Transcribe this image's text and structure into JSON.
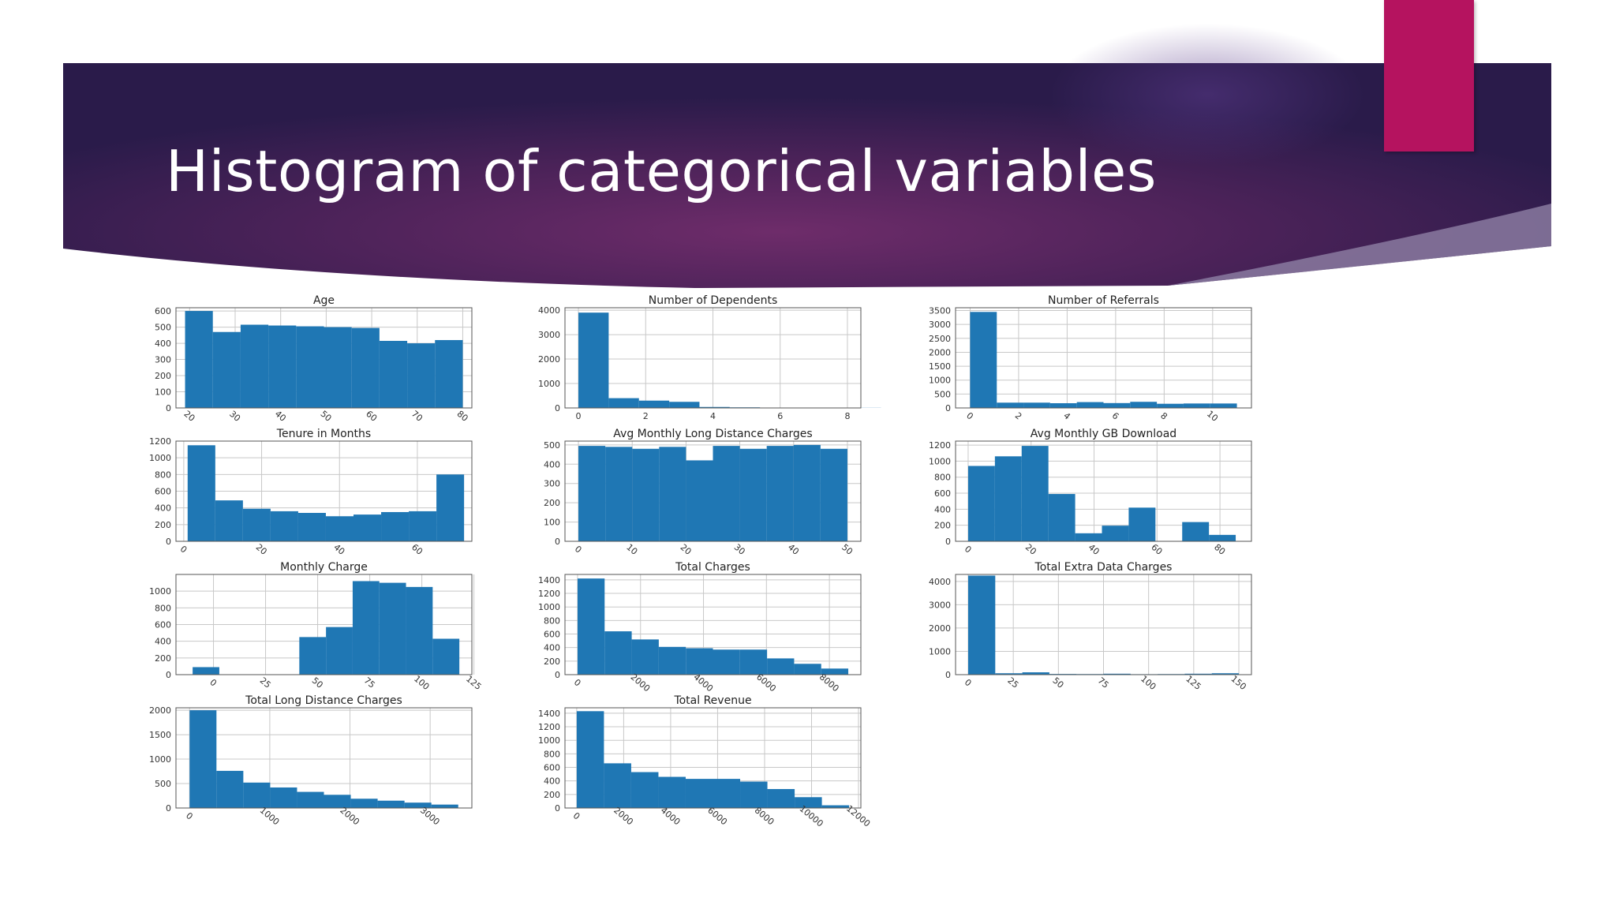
{
  "slide": {
    "title": "Histogram of categorical variables",
    "colors": {
      "banner_dark": "#2a1b4a",
      "banner_mid": "#6a2d68",
      "accent": "#b5135f",
      "bar": "#1f77b4"
    },
    "icons": []
  },
  "chart_data": [
    {
      "type": "bar",
      "title": "Age",
      "xlim": [
        17,
        82
      ],
      "ylim": [
        0,
        620
      ],
      "xticks": [
        20,
        30,
        40,
        50,
        60,
        70,
        80
      ],
      "yticks": [
        0,
        100,
        200,
        300,
        400,
        500,
        600
      ],
      "rotate_x": true,
      "bins": [
        [
          19,
          25.1,
          600
        ],
        [
          25.1,
          31.2,
          470
        ],
        [
          31.2,
          37.3,
          515
        ],
        [
          37.3,
          43.4,
          510
        ],
        [
          43.4,
          49.5,
          505
        ],
        [
          49.5,
          55.6,
          500
        ],
        [
          55.6,
          61.7,
          495
        ],
        [
          61.7,
          67.8,
          415
        ],
        [
          67.8,
          73.9,
          400
        ],
        [
          73.9,
          80,
          420
        ]
      ]
    },
    {
      "type": "bar",
      "title": "Number of Dependents",
      "xlim": [
        -0.4,
        8.4
      ],
      "ylim": [
        0,
        4100
      ],
      "xticks": [
        0,
        2,
        4,
        6,
        8
      ],
      "yticks": [
        0,
        1000,
        2000,
        3000,
        4000
      ],
      "rotate_x": false,
      "bins": [
        [
          0,
          0.9,
          3900
        ],
        [
          0.9,
          1.8,
          400
        ],
        [
          1.8,
          2.7,
          300
        ],
        [
          2.7,
          3.6,
          250
        ],
        [
          3.6,
          4.5,
          40
        ],
        [
          4.5,
          5.4,
          25
        ],
        [
          5.4,
          6.3,
          15
        ],
        [
          6.3,
          7.2,
          10
        ],
        [
          7.2,
          8.1,
          5
        ],
        [
          8.1,
          9,
          5
        ]
      ]
    },
    {
      "type": "bar",
      "title": "Number of Referrals",
      "xlim": [
        -0.6,
        11.6
      ],
      "ylim": [
        0,
        3600
      ],
      "xticks": [
        0,
        2,
        4,
        6,
        8,
        10
      ],
      "yticks": [
        0,
        500,
        1000,
        1500,
        2000,
        2500,
        3000,
        3500
      ],
      "rotate_x": true,
      "bins": [
        [
          0,
          1.1,
          3450
        ],
        [
          1.1,
          2.2,
          190
        ],
        [
          2.2,
          3.3,
          190
        ],
        [
          3.3,
          4.4,
          170
        ],
        [
          4.4,
          5.5,
          210
        ],
        [
          5.5,
          6.6,
          175
        ],
        [
          6.6,
          7.7,
          220
        ],
        [
          7.7,
          8.8,
          150
        ],
        [
          8.8,
          9.9,
          160
        ],
        [
          9.9,
          11,
          160
        ]
      ]
    },
    {
      "type": "bar",
      "title": "Tenure in Months",
      "xlim": [
        -2,
        74
      ],
      "ylim": [
        0,
        1200
      ],
      "xticks": [
        0,
        20,
        40,
        60
      ],
      "yticks": [
        0,
        200,
        400,
        600,
        800,
        1000,
        1200
      ],
      "rotate_x": true,
      "bins": [
        [
          1,
          8.1,
          1150
        ],
        [
          8.1,
          15.2,
          490
        ],
        [
          15.2,
          22.3,
          390
        ],
        [
          22.3,
          29.4,
          360
        ],
        [
          29.4,
          36.5,
          340
        ],
        [
          36.5,
          43.6,
          300
        ],
        [
          43.6,
          50.7,
          320
        ],
        [
          50.7,
          57.8,
          350
        ],
        [
          57.8,
          64.9,
          360
        ],
        [
          64.9,
          72,
          800
        ]
      ]
    },
    {
      "type": "bar",
      "title": "Avg Monthly Long Distance Charges",
      "xlim": [
        -2.5,
        52.5
      ],
      "ylim": [
        0,
        520
      ],
      "xticks": [
        0,
        10,
        20,
        30,
        40,
        50
      ],
      "yticks": [
        0,
        100,
        200,
        300,
        400,
        500
      ],
      "rotate_x": true,
      "bins": [
        [
          0,
          5,
          495
        ],
        [
          5,
          10,
          490
        ],
        [
          10,
          15,
          480
        ],
        [
          15,
          20,
          490
        ],
        [
          20,
          25,
          420
        ],
        [
          25,
          30,
          495
        ],
        [
          30,
          35,
          480
        ],
        [
          35,
          40,
          495
        ],
        [
          40,
          45,
          500
        ],
        [
          45,
          50,
          480
        ]
      ]
    },
    {
      "type": "bar",
      "title": "Avg Monthly GB Download",
      "xlim": [
        -4,
        90
      ],
      "ylim": [
        0,
        1250
      ],
      "xticks": [
        0,
        20,
        40,
        60,
        80
      ],
      "yticks": [
        0,
        200,
        400,
        600,
        800,
        1000,
        1200
      ],
      "rotate_x": true,
      "bins": [
        [
          0,
          8.5,
          940
        ],
        [
          8.5,
          17,
          1060
        ],
        [
          17,
          25.5,
          1190
        ],
        [
          25.5,
          34,
          590
        ],
        [
          34,
          42.5,
          100
        ],
        [
          42.5,
          51,
          195
        ],
        [
          51,
          59.5,
          420
        ],
        [
          59.5,
          68,
          0
        ],
        [
          68,
          76.5,
          240
        ],
        [
          76.5,
          85,
          80
        ]
      ]
    },
    {
      "type": "bar",
      "title": "Monthly Charge",
      "xlim": [
        -18,
        124
      ],
      "ylim": [
        0,
        1200
      ],
      "xticks": [
        0,
        25,
        50,
        75,
        100,
        125
      ],
      "yticks": [
        0,
        200,
        400,
        600,
        800,
        1000
      ],
      "rotate_x": true,
      "bins": [
        [
          -10,
          2.8,
          90
        ],
        [
          2.8,
          15.6,
          0
        ],
        [
          15.6,
          28.4,
          0
        ],
        [
          28.4,
          41.2,
          0
        ],
        [
          41.2,
          54,
          450
        ],
        [
          54,
          66.8,
          570
        ],
        [
          66.8,
          79.6,
          1120
        ],
        [
          79.6,
          92.4,
          1100
        ],
        [
          92.4,
          105.2,
          1050
        ],
        [
          105.2,
          118,
          430
        ]
      ]
    },
    {
      "type": "bar",
      "title": "Total Charges",
      "xlim": [
        -400,
        9000
      ],
      "ylim": [
        0,
        1480
      ],
      "xticks": [
        0,
        2000,
        4000,
        6000,
        8000
      ],
      "yticks": [
        0,
        200,
        400,
        600,
        800,
        1000,
        1200,
        1400
      ],
      "rotate_x": true,
      "bins": [
        [
          0,
          860,
          1420
        ],
        [
          860,
          1720,
          640
        ],
        [
          1720,
          2580,
          520
        ],
        [
          2580,
          3440,
          410
        ],
        [
          3440,
          4300,
          390
        ],
        [
          4300,
          5160,
          370
        ],
        [
          5160,
          6020,
          370
        ],
        [
          6020,
          6880,
          240
        ],
        [
          6880,
          7740,
          160
        ],
        [
          7740,
          8600,
          90
        ]
      ]
    },
    {
      "type": "bar",
      "title": "Total Extra Data Charges",
      "xlim": [
        -7,
        157
      ],
      "ylim": [
        0,
        4300
      ],
      "xticks": [
        0,
        25,
        50,
        75,
        100,
        125,
        150
      ],
      "yticks": [
        0,
        1000,
        2000,
        3000,
        4000
      ],
      "rotate_x": true,
      "bins": [
        [
          0,
          15,
          4250
        ],
        [
          15,
          30,
          60
        ],
        [
          30,
          45,
          100
        ],
        [
          45,
          60,
          30
        ],
        [
          60,
          75,
          25
        ],
        [
          75,
          90,
          40
        ],
        [
          90,
          105,
          20
        ],
        [
          105,
          120,
          25
        ],
        [
          120,
          135,
          40
        ],
        [
          135,
          150,
          60
        ]
      ]
    },
    {
      "type": "bar",
      "title": "Total Long Distance Charges",
      "xlim": [
        -170,
        3520
      ],
      "ylim": [
        0,
        2050
      ],
      "xticks": [
        0,
        1000,
        2000,
        3000
      ],
      "yticks": [
        0,
        500,
        1000,
        1500,
        2000
      ],
      "rotate_x": true,
      "bins": [
        [
          0,
          335,
          2000
        ],
        [
          335,
          670,
          760
        ],
        [
          670,
          1005,
          520
        ],
        [
          1005,
          1340,
          420
        ],
        [
          1340,
          1675,
          330
        ],
        [
          1675,
          2010,
          270
        ],
        [
          2010,
          2345,
          190
        ],
        [
          2345,
          2680,
          150
        ],
        [
          2680,
          3015,
          110
        ],
        [
          3015,
          3350,
          70
        ]
      ]
    },
    {
      "type": "bar",
      "title": "Total Revenue",
      "xlim": [
        -500,
        12100
      ],
      "ylim": [
        0,
        1480
      ],
      "xticks": [
        0,
        2000,
        4000,
        6000,
        8000,
        10000,
        12000
      ],
      "yticks": [
        0,
        200,
        400,
        600,
        800,
        1000,
        1200,
        1400
      ],
      "rotate_x": true,
      "bins": [
        [
          0,
          1160,
          1430
        ],
        [
          1160,
          2320,
          660
        ],
        [
          2320,
          3480,
          530
        ],
        [
          3480,
          4640,
          460
        ],
        [
          4640,
          5800,
          430
        ],
        [
          5800,
          6960,
          430
        ],
        [
          6960,
          8120,
          390
        ],
        [
          8120,
          9280,
          280
        ],
        [
          9280,
          10440,
          160
        ],
        [
          10440,
          11600,
          40
        ]
      ]
    }
  ]
}
